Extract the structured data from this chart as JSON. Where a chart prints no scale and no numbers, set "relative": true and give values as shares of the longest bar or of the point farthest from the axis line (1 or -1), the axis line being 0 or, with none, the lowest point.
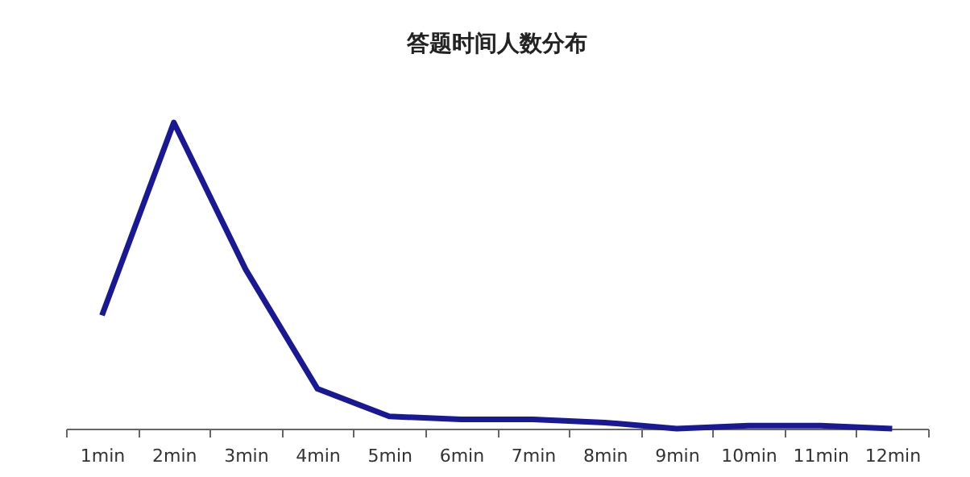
{
  "chart_data": {
    "type": "line",
    "title": "答题时间人数分布",
    "relative": true,
    "categories": [
      "1min",
      "2min",
      "3min",
      "4min",
      "5min",
      "6min",
      "7min",
      "8min",
      "9min",
      "10min",
      "11min",
      "12min"
    ],
    "series": [
      {
        "color": "#191996",
        "values": [
          0.37,
          1,
          0.52,
          0.13,
          0.04,
          0.03,
          0.03,
          0.02,
          0,
          0.01,
          0.01,
          0
        ]
      }
    ],
    "grid": false,
    "legend": false,
    "marker": "none",
    "line_style": "solid"
  }
}
